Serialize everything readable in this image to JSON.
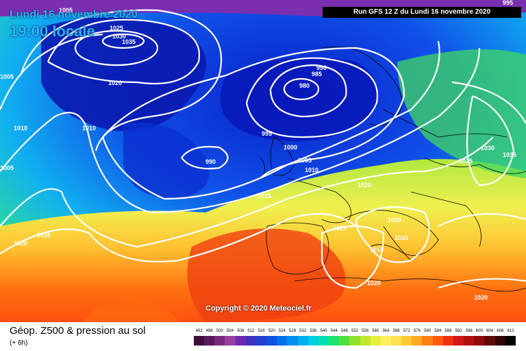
{
  "header": {
    "date": "Lundi 16 novembre 2020",
    "time": "19:00 locale",
    "run": "Run GFS 12 Z du Lundi 16 novembre 2020"
  },
  "copyright": "Copyright © 2020 Meteociel.fr",
  "footer": {
    "title": "Géop. Z500 & pression au sol",
    "subtitle": "(+ 6h)"
  },
  "isobar_labels": [
    "1005",
    "1010",
    "1025",
    "1030",
    "1035",
    "1020",
    "1005",
    "1010",
    "1005",
    "990",
    "985",
    "980",
    "995",
    "1000",
    "1005",
    "1010",
    "990",
    "1015",
    "1020",
    "1025",
    "1020",
    "1015",
    "1015",
    "1020",
    "1020",
    "1025",
    "1030",
    "1035",
    "1020",
    "1025",
    "995"
  ],
  "scale": {
    "ticks": [
      "492",
      "496",
      "500",
      "504",
      "508",
      "512",
      "516",
      "520",
      "524",
      "528",
      "532",
      "536",
      "540",
      "544",
      "548",
      "552",
      "556",
      "560",
      "564",
      "568",
      "572",
      "576",
      "580",
      "584",
      "588",
      "592",
      "596",
      "600",
      "604",
      "608",
      "612"
    ],
    "colors": [
      "#3d0d3d",
      "#5a1a5a",
      "#7a2a7a",
      "#9a3d9a",
      "#6a2ab0",
      "#4030c0",
      "#2040d0",
      "#1050e0",
      "#0070f0",
      "#0090f0",
      "#00b0f0",
      "#00d0e0",
      "#00e0b0",
      "#20e070",
      "#50e040",
      "#90e030",
      "#c0e830",
      "#e8f040",
      "#fff060",
      "#ffe050",
      "#ffc830",
      "#ffa820",
      "#ff8010",
      "#ff5a10",
      "#f03010",
      "#d01818",
      "#b01010",
      "#900a0a",
      "#600808",
      "#300404",
      "#000000"
    ]
  }
}
